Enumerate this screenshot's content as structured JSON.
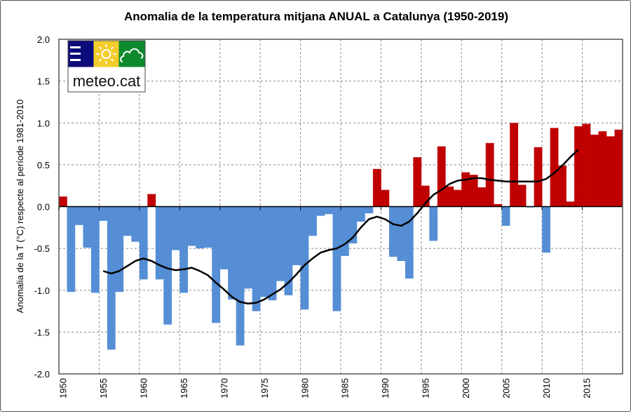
{
  "chart_data": {
    "type": "bar",
    "title": "Anomalia de la temperatura mitjana ANUAL a Catalunya (1950-2019)",
    "xlabel": "",
    "ylabel": "Anomalia de la T (°C) respecte al període 1981-2010",
    "ylim": [
      -2.0,
      2.0
    ],
    "yticks": [
      "-2.0",
      "-1.5",
      "-1.0",
      "-0.5",
      "0.0",
      "0.5",
      "1.0",
      "1.5",
      "2.0"
    ],
    "xticks": [
      "1950",
      "1955",
      "1960",
      "1965",
      "1970",
      "1975",
      "1980",
      "1985",
      "1990",
      "1995",
      "2000",
      "2005",
      "2010",
      "2015"
    ],
    "grid": true,
    "colors": {
      "positive": "#c00000",
      "negative": "#558ed5",
      "trend": "#000000"
    },
    "years": [
      1950,
      1951,
      1952,
      1953,
      1954,
      1955,
      1956,
      1957,
      1958,
      1959,
      1960,
      1961,
      1962,
      1963,
      1964,
      1965,
      1966,
      1967,
      1968,
      1969,
      1970,
      1971,
      1972,
      1973,
      1974,
      1975,
      1976,
      1977,
      1978,
      1979,
      1980,
      1981,
      1982,
      1983,
      1984,
      1985,
      1986,
      1987,
      1988,
      1989,
      1990,
      1991,
      1992,
      1993,
      1994,
      1995,
      1996,
      1997,
      1998,
      1999,
      2000,
      2001,
      2002,
      2003,
      2004,
      2005,
      2006,
      2007,
      2008,
      2009,
      2010,
      2011,
      2012,
      2013,
      2014,
      2015,
      2016,
      2017,
      2018,
      2019
    ],
    "values": [
      0.12,
      -1.02,
      -0.22,
      -0.49,
      -1.03,
      -0.17,
      -1.71,
      -1.02,
      -0.35,
      -0.42,
      -0.87,
      0.15,
      -0.87,
      -1.41,
      -0.52,
      -1.03,
      -0.47,
      -0.5,
      -0.49,
      -1.39,
      -0.75,
      -1.11,
      -1.66,
      -0.98,
      -1.25,
      -1.08,
      -1.12,
      -0.89,
      -1.06,
      -0.7,
      -1.23,
      -0.35,
      -0.11,
      -0.09,
      -1.25,
      -0.59,
      -0.44,
      -0.18,
      -0.08,
      0.45,
      0.2,
      -0.6,
      -0.65,
      -0.86,
      0.59,
      0.25,
      -0.41,
      0.72,
      0.24,
      0.2,
      0.41,
      0.38,
      0.23,
      0.76,
      0.03,
      -0.23,
      1.0,
      0.26,
      -0.01,
      0.71,
      -0.55,
      0.94,
      0.49,
      0.06,
      0.96,
      0.99,
      0.86,
      0.9,
      0.84,
      0.92
    ],
    "trend": {
      "years": [
        1955,
        1956,
        1957,
        1958,
        1959,
        1960,
        1961,
        1962,
        1963,
        1964,
        1965,
        1966,
        1967,
        1968,
        1969,
        1970,
        1971,
        1972,
        1973,
        1974,
        1975,
        1976,
        1977,
        1978,
        1979,
        1980,
        1981,
        1982,
        1983,
        1984,
        1985,
        1986,
        1987,
        1988,
        1989,
        1990,
        1991,
        1992,
        1993,
        1994,
        1995,
        1996,
        1997,
        1998,
        1999,
        2000,
        2001,
        2002,
        2003,
        2004,
        2005,
        2006,
        2007,
        2008,
        2009,
        2010,
        2011,
        2012,
        2013,
        2014
      ],
      "values": [
        -0.77,
        -0.8,
        -0.77,
        -0.71,
        -0.65,
        -0.62,
        -0.65,
        -0.7,
        -0.74,
        -0.76,
        -0.75,
        -0.73,
        -0.77,
        -0.82,
        -0.91,
        -0.99,
        -1.08,
        -1.14,
        -1.16,
        -1.15,
        -1.11,
        -1.05,
        -0.99,
        -0.91,
        -0.81,
        -0.7,
        -0.62,
        -0.55,
        -0.52,
        -0.5,
        -0.45,
        -0.37,
        -0.25,
        -0.15,
        -0.12,
        -0.15,
        -0.21,
        -0.23,
        -0.18,
        -0.08,
        0.04,
        0.14,
        0.2,
        0.27,
        0.31,
        0.32,
        0.34,
        0.34,
        0.32,
        0.31,
        0.3,
        0.3,
        0.3,
        0.3,
        0.3,
        0.33,
        0.4,
        0.49,
        0.59,
        0.68
      ]
    }
  },
  "logo": {
    "text": "meteo.cat",
    "colors": [
      "#0b0b7a",
      "#f4cc2c",
      "#0d8a2e"
    ]
  }
}
